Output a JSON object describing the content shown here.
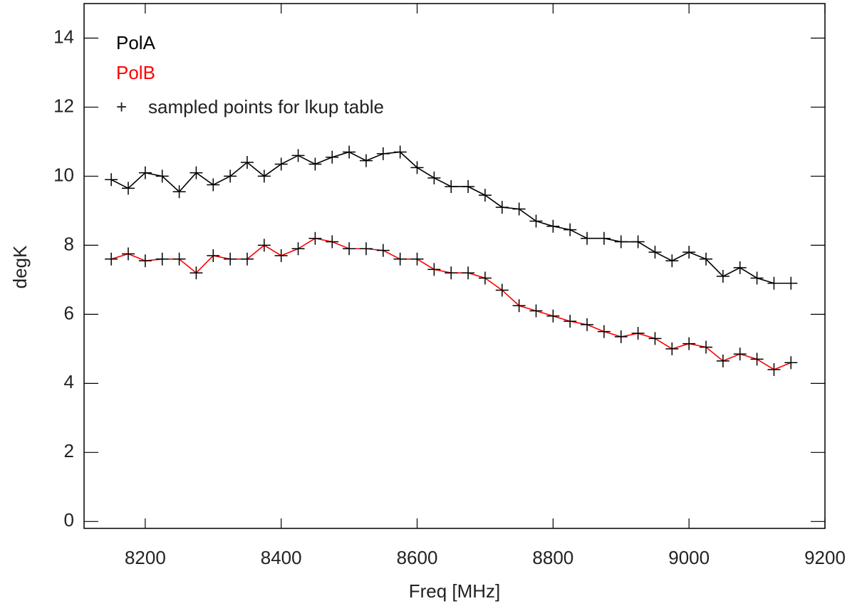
{
  "chart_data": {
    "type": "line",
    "x_label": "Freq [MHz]",
    "y_label": "degK",
    "x": [
      8150,
      8175,
      8200,
      8225,
      8250,
      8275,
      8300,
      8325,
      8350,
      8375,
      8400,
      8425,
      8450,
      8475,
      8500,
      8525,
      8550,
      8575,
      8600,
      8625,
      8650,
      8675,
      8700,
      8725,
      8750,
      8775,
      8800,
      8825,
      8850,
      8875,
      8900,
      8925,
      8950,
      8975,
      9000,
      9025,
      9050,
      9075,
      9100,
      9125,
      9150
    ],
    "series": [
      {
        "name": "PolA",
        "color": "#000000",
        "values": [
          9.9,
          9.65,
          10.1,
          10.0,
          9.55,
          10.1,
          9.75,
          10.0,
          10.4,
          10.0,
          10.35,
          10.6,
          10.35,
          10.55,
          10.7,
          10.45,
          10.65,
          10.7,
          10.25,
          9.95,
          9.7,
          9.7,
          9.45,
          9.1,
          9.05,
          8.7,
          8.55,
          8.45,
          8.2,
          8.2,
          8.1,
          8.1,
          7.8,
          7.55,
          7.8,
          7.6,
          7.1,
          7.35,
          7.05,
          6.9,
          6.9
        ]
      },
      {
        "name": "PolB",
        "color": "#ff0000",
        "values": [
          7.6,
          7.75,
          7.55,
          7.6,
          7.6,
          7.2,
          7.7,
          7.6,
          7.6,
          8.0,
          7.7,
          7.9,
          8.2,
          8.1,
          7.9,
          7.9,
          7.85,
          7.6,
          7.6,
          7.3,
          7.2,
          7.2,
          7.05,
          6.7,
          6.25,
          6.1,
          5.95,
          5.8,
          5.7,
          5.5,
          5.35,
          5.45,
          5.3,
          5.0,
          5.15,
          5.05,
          4.65,
          4.85,
          4.7,
          4.4,
          4.6
        ]
      }
    ],
    "marker": "+",
    "marker_color": "#000000",
    "marker_legend": "sampled points for lkup table",
    "xlim": [
      8110,
      9200
    ],
    "xticks": [
      8200,
      8400,
      8600,
      8800,
      9000,
      9200
    ],
    "ylim": [
      -0.2,
      15
    ],
    "yticks": [
      0,
      2,
      4,
      6,
      8,
      10,
      12,
      14
    ],
    "grid": false,
    "legend": "upper left"
  }
}
